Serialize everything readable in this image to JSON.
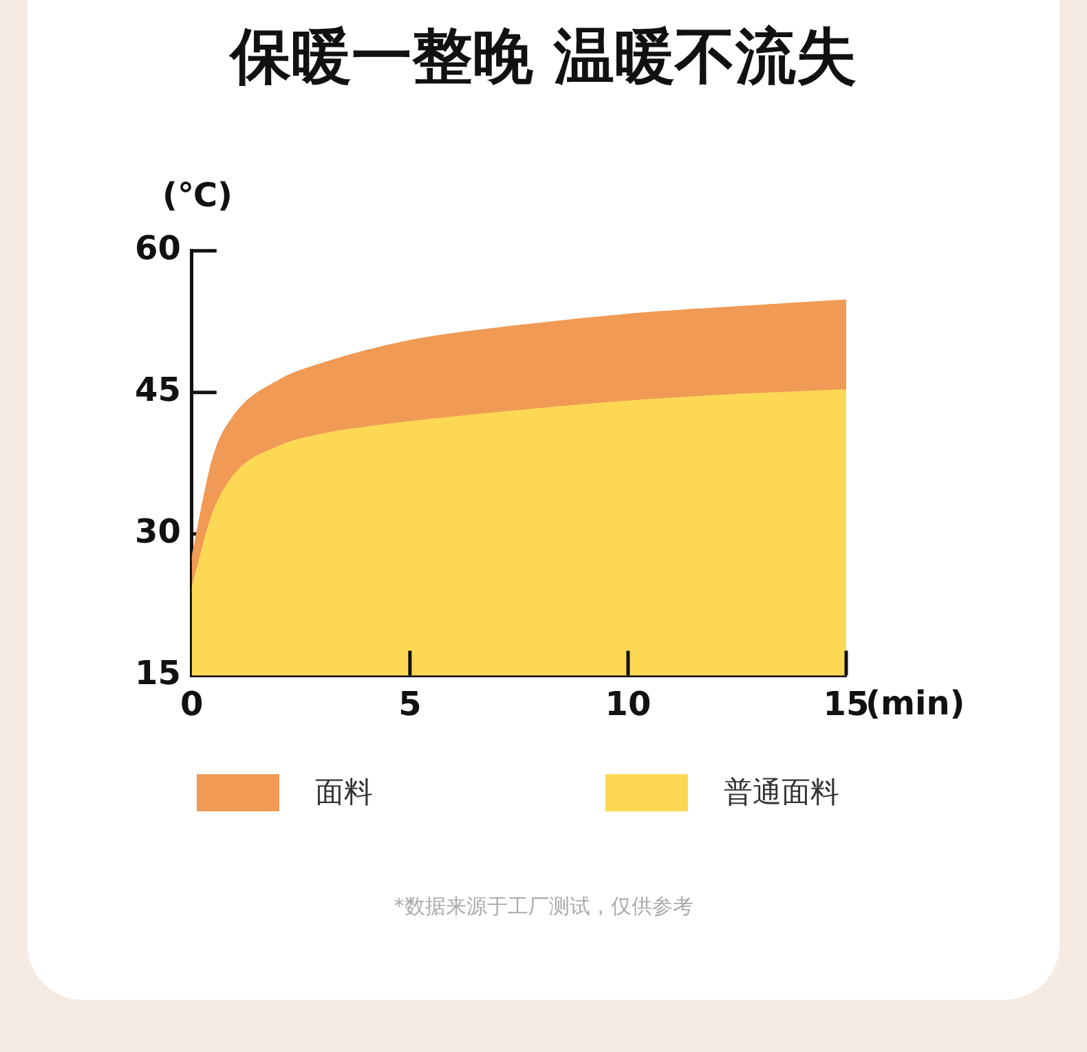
{
  "chart_data": {
    "type": "area",
    "title": "保暖一整晚 温暖不流失",
    "ylabel": "(℃)",
    "xlabel": "(min)",
    "x": [
      0,
      0.5,
      1,
      2,
      3,
      5,
      7.5,
      10,
      12.5,
      15
    ],
    "series": [
      {
        "name": "面料",
        "color": "#f09a55",
        "values": [
          27,
          38,
          42.6,
          46.2,
          48,
          50.4,
          52,
          53.2,
          54,
          54.7
        ]
      },
      {
        "name": "普通面料",
        "color": "#fdd855",
        "values": [
          23.9,
          32.2,
          36.3,
          39.2,
          40.5,
          41.8,
          43,
          44,
          44.7,
          45.2
        ]
      }
    ],
    "xlim": [
      0,
      15
    ],
    "xticks": [
      0,
      5,
      10,
      15
    ],
    "ylim": [
      15,
      60
    ],
    "yticks": [
      15,
      30,
      45,
      60
    ],
    "legend": "bottom",
    "annotations": [
      "*数据来源于工厂测试，仅供参考"
    ]
  }
}
